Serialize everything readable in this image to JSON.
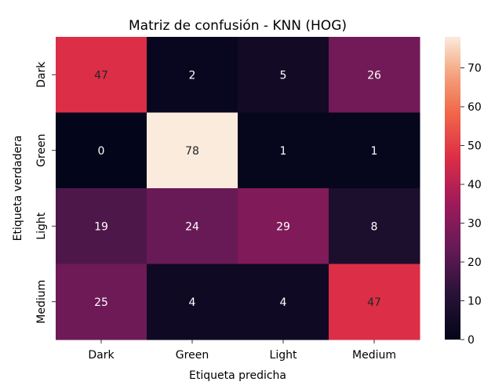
{
  "chart_data": {
    "type": "heatmap",
    "title": "Matriz de confusión - KNN (HOG)",
    "xlabel": "Etiqueta predicha",
    "ylabel": "Etiqueta verdadera",
    "x_categories": [
      "Dark",
      "Green",
      "Light",
      "Medium"
    ],
    "y_categories": [
      "Dark",
      "Green",
      "Light",
      "Medium"
    ],
    "values": [
      [
        47,
        2,
        5,
        26
      ],
      [
        0,
        78,
        1,
        1
      ],
      [
        19,
        24,
        29,
        8
      ],
      [
        25,
        4,
        4,
        47
      ]
    ],
    "colorbar": {
      "min": 0,
      "max": 78,
      "ticks": [
        0,
        10,
        20,
        30,
        40,
        50,
        60,
        70
      ],
      "colormap": "rocket"
    },
    "grid": false
  }
}
